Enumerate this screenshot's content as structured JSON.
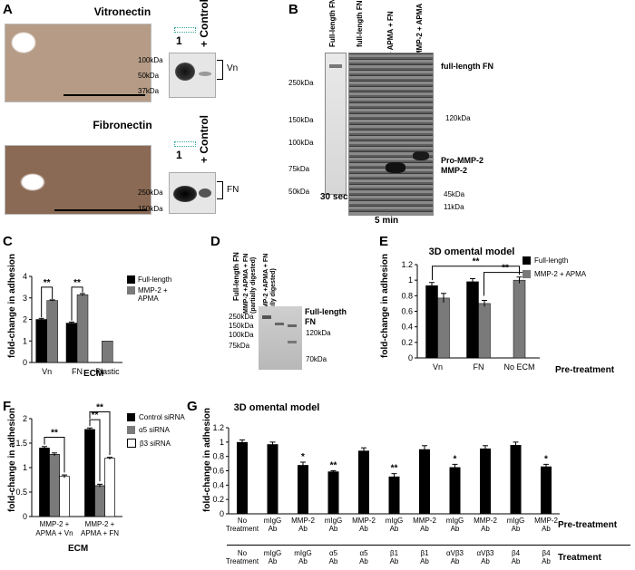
{
  "panelA": {
    "label": "A",
    "vitronectin_title": "Vitronectin",
    "fibronectin_title": "Fibronectin",
    "lane1": "1",
    "lane_control": "+ Control",
    "vn_markers": [
      "100kDa",
      "50kDa",
      "37kDa"
    ],
    "vn_band": "Vn",
    "fn_markers": [
      "250kDa",
      "150kDa"
    ],
    "fn_band": "FN"
  },
  "panelB": {
    "label": "B",
    "lanes": [
      "Full-length FN",
      "full-length FN",
      "MMP-2 + APMA + FN",
      "MMP-2 + APMA"
    ],
    "markers": [
      "250kDa",
      "150kDa",
      "100kDa",
      "75kDa",
      "50kDa"
    ],
    "right_labels": [
      "full-length FN",
      "120kDa",
      "Pro-MMP-2",
      "MMP-2",
      "45kDa",
      "11kDa"
    ],
    "time1": "30 sec",
    "time2": "5 min"
  },
  "panelD": {
    "label": "D",
    "lanes": [
      "Full-length FN",
      "MMP-2 +APMA + FN (partially digested)",
      "MMP-2 +APMA + FN (fully digested)"
    ],
    "markers": [
      "250kDa",
      "150kDa",
      "100kDa",
      "75kDa"
    ],
    "right_labels": [
      "Full-length FN",
      "120kDa",
      "70kDa"
    ]
  },
  "panelC": {
    "label": "C",
    "ylabel": "fold-change in adhesion",
    "xlabel": "ECM",
    "sig": [
      "**",
      "**"
    ],
    "legend": [
      "Full-length",
      "MMP-2 + APMA"
    ]
  },
  "panelE": {
    "label": "E",
    "title": "3D omental model",
    "ylabel": "fold-change in adhesion",
    "xlabel": "Pre-treatment",
    "sig": [
      "**",
      "**"
    ],
    "legend": [
      "Full-length",
      "MMP-2 + APMA"
    ]
  },
  "panelF": {
    "label": "F",
    "ylabel": "fold-change in adhesion",
    "xlabel": "ECM",
    "sig": [
      "**",
      "**",
      "**"
    ],
    "legend": [
      "Control siRNA",
      "α5 siRNA",
      "β3 siRNA"
    ]
  },
  "panelG": {
    "label": "G",
    "title": "3D omental model",
    "ylabel": "fold-change in adhesion",
    "row1_label": "Pre-treatment",
    "row2_label": "Treatment",
    "pretreatment": [
      "No Treatment",
      "mIgG Ab",
      "MMP-2 Ab",
      "mIgG Ab",
      "MMP-2 Ab",
      "mIgG Ab",
      "MMP-2 Ab",
      "mIgG Ab",
      "MMP-2 Ab",
      "mIgG Ab",
      "MMP-2 Ab"
    ],
    "treatment": [
      "No Treatment",
      "mIgG Ab",
      "mIgG Ab",
      "α5 Ab",
      "α5 Ab",
      "β1 Ab",
      "β1 Ab",
      "αVβ3 Ab",
      "αVβ3 Ab",
      "β4 Ab",
      "β4 Ab"
    ],
    "sig": [
      "",
      "",
      "*",
      "**",
      "",
      "**",
      "",
      "*",
      "",
      "",
      "*"
    ]
  },
  "chart_data": [
    {
      "panel": "C",
      "type": "bar",
      "categories": [
        "Vn",
        "FN",
        "Plastic"
      ],
      "series": [
        {
          "name": "Full-length",
          "values": [
            2.0,
            1.83,
            null
          ],
          "errors": [
            0.05,
            0.05,
            null
          ]
        },
        {
          "name": "MMP-2 + APMA",
          "values": [
            2.88,
            3.15,
            1.0
          ],
          "errors": [
            0.03,
            0.05,
            0
          ]
        }
      ],
      "xlabel": "ECM",
      "ylabel": "fold-change in adhesion",
      "ylim": [
        0,
        4
      ],
      "yticks": [
        0,
        1,
        2,
        3,
        4
      ],
      "legend": "right"
    },
    {
      "panel": "E",
      "type": "bar",
      "title": "3D omental model",
      "categories": [
        "Vn",
        "FN",
        "No ECM"
      ],
      "series": [
        {
          "name": "Full-length",
          "values": [
            0.93,
            0.98,
            null
          ],
          "errors": [
            0.04,
            0.04,
            null
          ]
        },
        {
          "name": "MMP-2 + APMA",
          "values": [
            0.77,
            0.7,
            1.0
          ],
          "errors": [
            0.06,
            0.04,
            0.04
          ]
        }
      ],
      "xlabel": "Pre-treatment",
      "ylabel": "fold-change in adhesion",
      "ylim": [
        0,
        1.2
      ],
      "yticks": [
        0,
        0.2,
        0.4,
        0.6,
        0.8,
        1,
        1.2
      ],
      "legend": "top-right"
    },
    {
      "panel": "F",
      "type": "bar",
      "categories": [
        "MMP-2 + APMA + Vn",
        "MMP-2 + APMA + FN"
      ],
      "series": [
        {
          "name": "Control siRNA",
          "values": [
            1.4,
            1.78
          ],
          "errors": [
            0.03,
            0.03
          ]
        },
        {
          "name": "α5 siRNA",
          "values": [
            1.27,
            0.63
          ],
          "errors": [
            0.03,
            0.03
          ]
        },
        {
          "name": "β3 siRNA",
          "values": [
            0.82,
            1.19
          ],
          "errors": [
            0.03,
            0.02
          ]
        }
      ],
      "xlabel": "ECM",
      "ylabel": "fold-change in adhesion",
      "ylim": [
        0,
        2
      ],
      "yticks": [
        0,
        0.5,
        1,
        1.5,
        2
      ],
      "legend": "right"
    },
    {
      "panel": "G",
      "type": "bar",
      "title": "3D omental model",
      "categories": [
        "1",
        "2",
        "3",
        "4",
        "5",
        "6",
        "7",
        "8",
        "9",
        "10",
        "11"
      ],
      "values": [
        1.0,
        0.97,
        0.68,
        0.59,
        0.88,
        0.52,
        0.9,
        0.65,
        0.91,
        0.96,
        0.66
      ],
      "errors": [
        0.03,
        0.03,
        0.04,
        0.01,
        0.04,
        0.04,
        0.05,
        0.04,
        0.04,
        0.04,
        0.03
      ],
      "ylabel": "fold-change in adhesion",
      "ylim": [
        0,
        1.2
      ],
      "yticks": [
        0,
        0.2,
        0.4,
        0.6,
        0.8,
        1,
        1.2
      ]
    }
  ]
}
